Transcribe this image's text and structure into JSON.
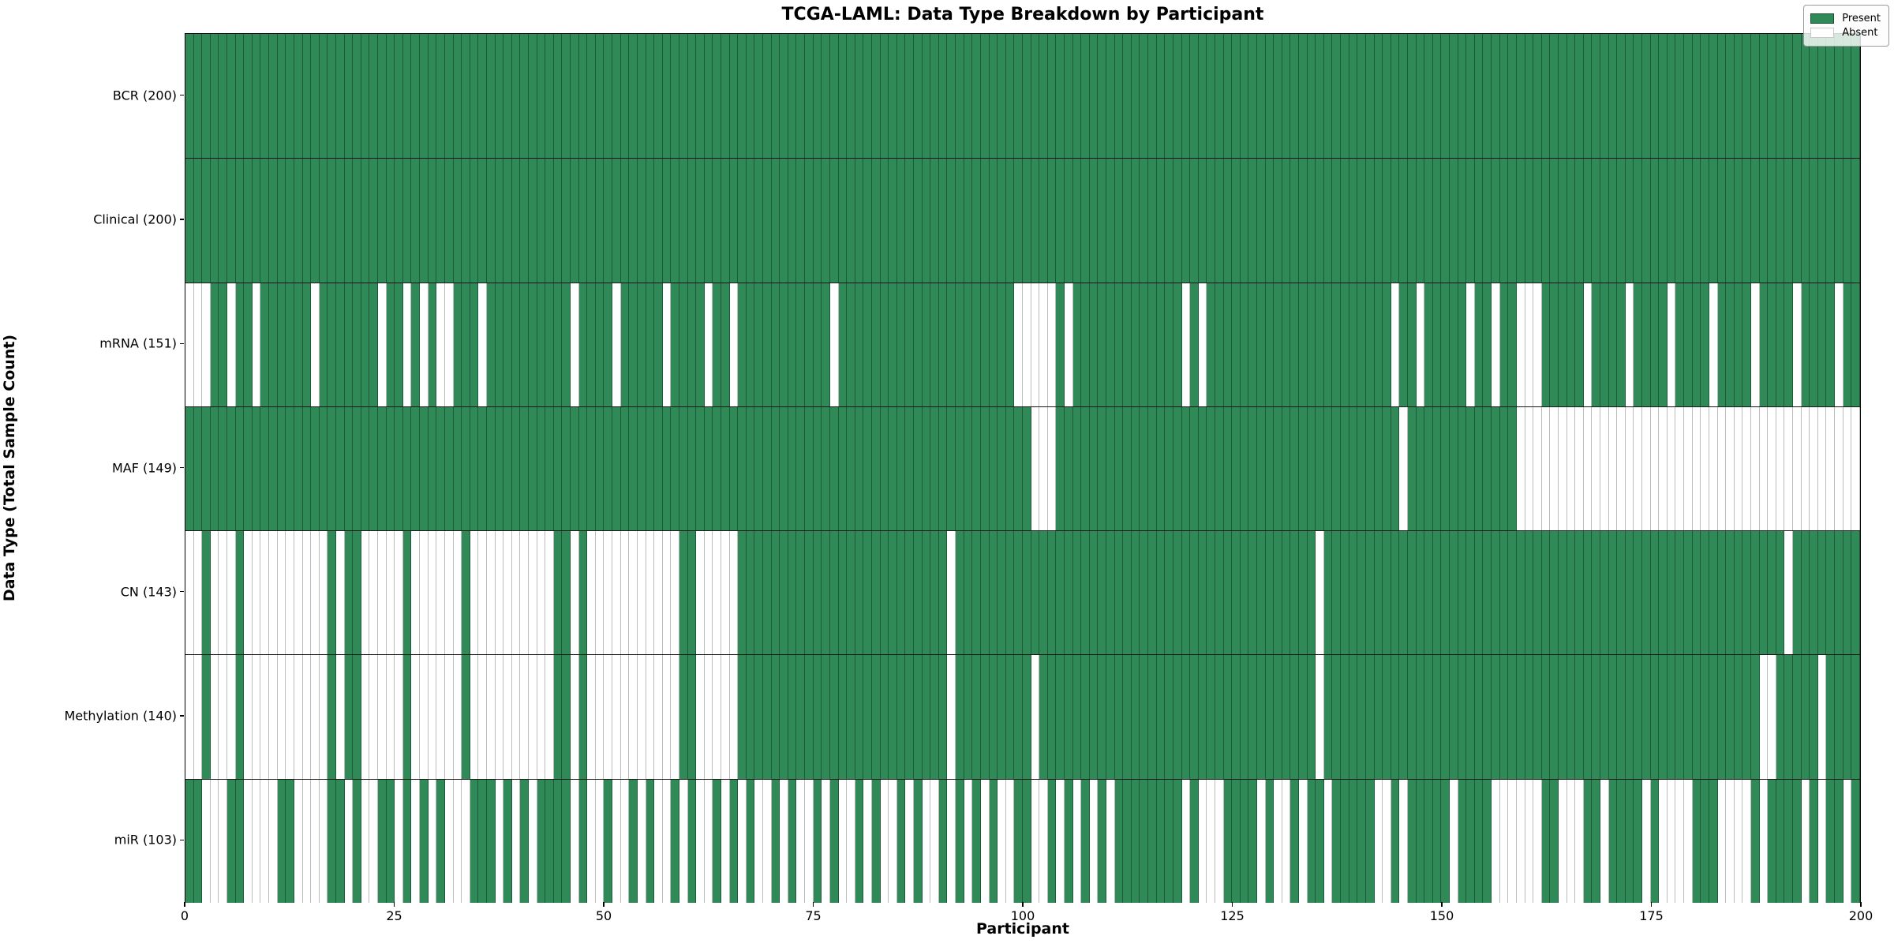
{
  "title": "TCGA-LAML: Data Type Breakdown by Participant",
  "axes": {
    "xlabel": "Participant",
    "ylabel": "Data Type (Total Sample Count)"
  },
  "legend": {
    "present_label": "Present",
    "absent_label": "Absent"
  },
  "colors": {
    "present": "#2f8a57",
    "absent": "#ffffff",
    "cell_edge_on_green": "rgba(10,40,25,0.5)",
    "cell_edge_on_white": "#bdbdbd",
    "row_separator": "#161616",
    "axis_spine": "#000000"
  },
  "chart_data": {
    "type": "heatmap",
    "title": "TCGA-LAML: Data Type Breakdown by Participant",
    "xlabel": "Participant",
    "ylabel": "Data Type (Total Sample Count)",
    "x_range": [
      0,
      200
    ],
    "x_ticks": [
      0,
      25,
      50,
      75,
      100,
      125,
      150,
      175,
      200
    ],
    "n_participants": 200,
    "legend_entries": [
      "Present",
      "Absent"
    ],
    "legend_position": "upper right",
    "grid": false,
    "value_encoding": {
      "1": "Present",
      "0": "Absent"
    },
    "rows": [
      {
        "name": "BCR",
        "label": "BCR (200)",
        "total_sample_count": 200,
        "pattern": "11111111111111111111111111111111111111111111111111111111111111111111111111111111111111111111111111111111111111111111111111111111111111111111111111111111111111111111111111111111111111111111111111111111"
      },
      {
        "name": "Clinical",
        "label": "Clinical (200)",
        "total_sample_count": 200,
        "pattern": "11111111111111111111111111111111111111111111111111111111111111111111111111111111111111111111111111111111111111111111111111111111111111111111111111111111111111111111111111111111111111111111111111111111"
      },
      {
        "name": "mRNA",
        "label": "mRNA (151)",
        "total_sample_count": 151,
        "pattern": "00011011011111101111111011010100111011111111110111101111101111011011111111111011111111111111111111100000101111111111111010111111111111111111111101101111101101100011111011110111101111011110111101111011"
      },
      {
        "name": "MAF",
        "label": "MAF (149)",
        "total_sample_count": 149,
        "pattern": "11111111111111111111111111111111111111111111111111111111111111111111111111111111111111111111111111111000111111111111111111111111111111111111111110111111111111100000000000000000000000000000000000000000"
      },
      {
        "name": "CN",
        "label": "CN (143)",
        "total_sample_count": 143,
        "pattern": "00100010000000000101100000100000010000000000110100000000000110000011111111111111111111111110111111111111111111111111111111111111111111101111111111111111111111111111111111111111111111111111111011111111"
      },
      {
        "name": "Methylation",
        "label": "Methylation (140)",
        "total_sample_count": 140,
        "pattern": "00100010000000000101100000100000010000000000110100000000000110000011111111111111111111111110111111111011111111111111111111111111111111101111111111111111111111111111111111111111111111111111001111101111"
      },
      {
        "name": "miR",
        "label": "miR (103)",
        "total_sample_count": 103,
        "pattern": "11000110000110000110100110101010001110101011110100100101001010010101001010010100101001010010101010011001010101011111111010001111010010110111110010111110111100000011000110111101000011100001011110101101"
      }
    ]
  }
}
